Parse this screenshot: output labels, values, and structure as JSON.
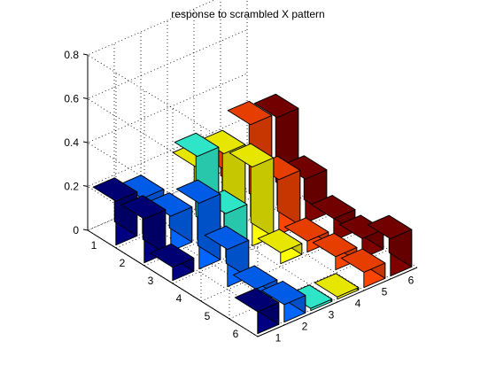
{
  "chart_data": {
    "type": "bar3",
    "title": "response to scrambled X pattern",
    "xlabel": "",
    "ylabel": "",
    "zlabel": "",
    "rows": [
      "1",
      "2",
      "3",
      "4",
      "5",
      "6"
    ],
    "columns": [
      "1",
      "2",
      "3",
      "4",
      "5",
      "6"
    ],
    "z_ticks": [
      "0",
      "0.2",
      "0.4",
      "0.6",
      "0.8"
    ],
    "zlim": [
      0,
      0.8
    ],
    "grid": true,
    "colormap": "jet",
    "column_colors": [
      "#000080",
      "#0066ff",
      "#33ffdd",
      "#ffff00",
      "#ff4400",
      "#800000"
    ],
    "values": [
      [
        0.2,
        0.16,
        0.0,
        0.2,
        0.14,
        0.0
      ],
      [
        0.2,
        0.16,
        0.38,
        0.34,
        0.42,
        0.4
      ],
      [
        0.06,
        0.3,
        0.2,
        0.36,
        0.25,
        0.2
      ],
      [
        0.0,
        0.17,
        0.0,
        0.05,
        0.05,
        0.1
      ],
      [
        0.0,
        0.07,
        0.0,
        0.0,
        0.06,
        0.09
      ],
      [
        0.1,
        0.08,
        0.01,
        0.01,
        0.07,
        0.17
      ]
    ]
  }
}
